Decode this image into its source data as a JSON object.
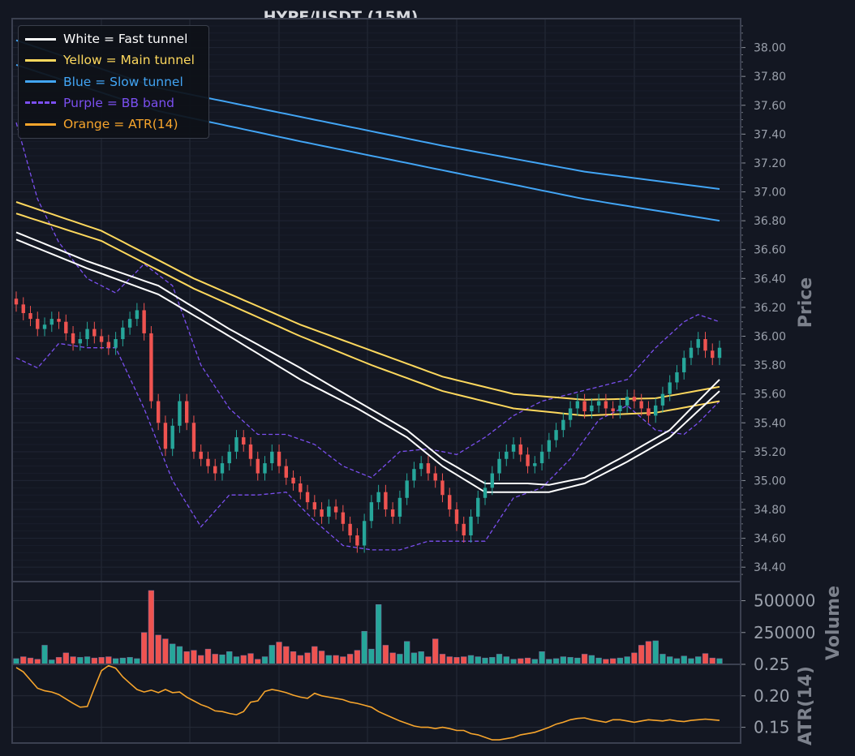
{
  "chart_data": {
    "type": "candlestick",
    "title": "HYPE/USDT (15M)",
    "theme": {
      "background": "#131722",
      "grid": "#262b38",
      "frame": "#3b4050",
      "tick_text": "#9aa0ab",
      "label_text": "#7c818c",
      "up_color": "#26a69a",
      "down_color": "#ef5350"
    },
    "price_panel": {
      "ylabel": "Price",
      "ylim": [
        34.3,
        38.2
      ],
      "yticks": [
        "34.40",
        "34.60",
        "34.80",
        "35.00",
        "35.20",
        "35.40",
        "35.60",
        "35.80",
        "36.00",
        "36.20",
        "36.40",
        "36.60",
        "36.80",
        "37.00",
        "37.20",
        "37.40",
        "37.60",
        "37.80",
        "38.00"
      ],
      "candles_close": [
        36.22,
        36.16,
        36.12,
        36.05,
        36.08,
        36.12,
        36.1,
        36.02,
        35.95,
        35.98,
        36.05,
        36.0,
        35.96,
        35.92,
        35.98,
        36.06,
        36.12,
        36.18,
        36.02,
        35.55,
        35.4,
        35.22,
        35.38,
        35.55,
        35.4,
        35.2,
        35.15,
        35.1,
        35.05,
        35.12,
        35.2,
        35.3,
        35.25,
        35.15,
        35.05,
        35.12,
        35.2,
        35.1,
        35.02,
        34.98,
        34.92,
        34.85,
        34.8,
        34.75,
        34.82,
        34.78,
        34.7,
        34.62,
        34.55,
        34.72,
        34.85,
        34.92,
        34.8,
        34.75,
        34.88,
        35.0,
        35.08,
        35.12,
        35.05,
        35.0,
        34.9,
        34.8,
        34.7,
        34.62,
        34.75,
        34.88,
        34.95,
        35.05,
        35.15,
        35.2,
        35.25,
        35.18,
        35.1,
        35.12,
        35.2,
        35.28,
        35.35,
        35.42,
        35.5,
        35.55,
        35.48,
        35.52,
        35.55,
        35.5,
        35.48,
        35.52,
        35.58,
        35.55,
        35.5,
        35.45,
        35.52,
        35.6,
        35.68,
        35.75,
        35.85,
        35.92,
        35.98,
        35.9,
        35.85,
        35.92
      ],
      "series": [
        {
          "name": "White = Fast tunnel",
          "color": "#ffffff",
          "style": "solid",
          "x": [
            0,
            10,
            20,
            30,
            40,
            48,
            55,
            60,
            66,
            72,
            75,
            80,
            86,
            92,
            99
          ],
          "upper": [
            36.72,
            36.52,
            36.35,
            36.05,
            35.78,
            35.55,
            35.35,
            35.15,
            34.98,
            34.98,
            34.97,
            35.02,
            35.18,
            35.35,
            35.7
          ],
          "lower": [
            36.67,
            36.47,
            36.29,
            36.0,
            35.7,
            35.5,
            35.3,
            35.1,
            34.92,
            34.92,
            34.92,
            34.98,
            35.13,
            35.3,
            35.62
          ]
        },
        {
          "name": "Yellow = Main tunnel",
          "color": "#fdd85d",
          "style": "solid",
          "x": [
            0,
            12,
            25,
            40,
            50,
            60,
            70,
            80,
            90,
            99
          ],
          "upper": [
            36.93,
            36.73,
            36.4,
            36.08,
            35.9,
            35.72,
            35.6,
            35.56,
            35.57,
            35.65
          ],
          "lower": [
            36.85,
            36.66,
            36.33,
            36.0,
            35.8,
            35.62,
            35.5,
            35.45,
            35.47,
            35.55
          ]
        },
        {
          "name": "Blue = Slow tunnel",
          "color": "#42a5f5",
          "style": "solid",
          "x": [
            0,
            20,
            40,
            60,
            80,
            99
          ],
          "upper": [
            38.05,
            37.72,
            37.52,
            37.32,
            37.14,
            37.02
          ],
          "lower": [
            37.88,
            37.56,
            37.35,
            37.15,
            36.95,
            36.8
          ]
        },
        {
          "name": "Purple = BB band",
          "color": "#7b4ff0",
          "style": "dashed",
          "x": [
            0,
            3,
            6,
            10,
            14,
            18,
            22,
            26,
            30,
            34,
            38,
            42,
            46,
            50,
            54,
            58,
            62,
            66,
            70,
            74,
            78,
            82,
            86,
            90,
            94,
            96,
            99
          ],
          "upper": [
            37.48,
            36.95,
            36.65,
            36.4,
            36.3,
            36.5,
            36.35,
            35.8,
            35.5,
            35.32,
            35.32,
            35.25,
            35.1,
            35.02,
            35.2,
            35.22,
            35.18,
            35.3,
            35.45,
            35.55,
            35.6,
            35.65,
            35.7,
            35.92,
            36.1,
            36.15,
            36.1
          ],
          "lower": [
            35.85,
            35.78,
            35.95,
            35.92,
            35.92,
            35.5,
            35.0,
            34.68,
            34.9,
            34.9,
            34.92,
            34.72,
            34.55,
            34.52,
            34.52,
            34.58,
            34.58,
            34.58,
            34.88,
            34.95,
            35.15,
            35.42,
            35.52,
            35.35,
            35.32,
            35.4,
            35.55
          ]
        }
      ]
    },
    "volume_panel": {
      "ylabel": "Volume",
      "yticks": [
        250000,
        500000
      ],
      "ytick_labels": [
        "250000",
        "500000"
      ],
      "ylim": [
        0,
        650000
      ],
      "values": [
        45000,
        60000,
        50000,
        40000,
        150000,
        35000,
        55000,
        90000,
        60000,
        55000,
        60000,
        50000,
        55000,
        60000,
        45000,
        50000,
        55000,
        45000,
        250000,
        580000,
        230000,
        200000,
        160000,
        140000,
        100000,
        110000,
        70000,
        120000,
        80000,
        75000,
        100000,
        60000,
        70000,
        85000,
        40000,
        60000,
        150000,
        175000,
        140000,
        100000,
        70000,
        90000,
        140000,
        105000,
        70000,
        70000,
        60000,
        80000,
        110000,
        260000,
        120000,
        470000,
        150000,
        90000,
        80000,
        180000,
        90000,
        100000,
        60000,
        200000,
        80000,
        60000,
        55000,
        60000,
        70000,
        60000,
        50000,
        55000,
        80000,
        60000,
        40000,
        45000,
        50000,
        40000,
        100000,
        40000,
        45000,
        60000,
        55000,
        50000,
        80000,
        70000,
        50000,
        40000,
        45000,
        50000,
        60000,
        90000,
        150000,
        180000,
        185000,
        80000,
        60000,
        45000,
        65000,
        45000,
        60000,
        85000,
        50000,
        45000
      ]
    },
    "atr_panel": {
      "ylabel": "ATR(14)",
      "ylim": [
        0.125,
        0.25
      ],
      "yticks": [
        0.15,
        0.2,
        0.25
      ],
      "ytick_labels": [
        "0.15",
        "0.20",
        "0.25"
      ],
      "values": [
        0.245,
        0.238,
        0.225,
        0.212,
        0.208,
        0.206,
        0.202,
        0.195,
        0.188,
        0.182,
        0.183,
        0.212,
        0.24,
        0.248,
        0.244,
        0.23,
        0.22,
        0.21,
        0.206,
        0.209,
        0.205,
        0.21,
        0.205,
        0.206,
        0.198,
        0.192,
        0.186,
        0.182,
        0.176,
        0.175,
        0.172,
        0.17,
        0.175,
        0.19,
        0.192,
        0.207,
        0.21,
        0.208,
        0.205,
        0.201,
        0.198,
        0.196,
        0.204,
        0.2,
        0.198,
        0.196,
        0.194,
        0.19,
        0.188,
        0.185,
        0.182,
        0.175,
        0.17,
        0.165,
        0.16,
        0.156,
        0.152,
        0.15,
        0.15,
        0.148,
        0.15,
        0.148,
        0.145,
        0.145,
        0.14,
        0.138,
        0.134,
        0.13,
        0.13,
        0.132,
        0.134,
        0.138,
        0.14,
        0.142,
        0.146,
        0.15,
        0.155,
        0.158,
        0.162,
        0.164,
        0.165,
        0.162,
        0.16,
        0.158,
        0.162,
        0.162,
        0.16,
        0.158,
        0.16,
        0.162,
        0.161,
        0.16,
        0.162,
        0.16,
        0.159,
        0.161,
        0.162,
        0.163,
        0.162,
        0.161
      ],
      "color": "#f7a52c"
    },
    "legend": {
      "placement": "top-left",
      "entries": [
        {
          "label": "White = Fast tunnel",
          "color": "#ffffff",
          "text_color": "#ffffff",
          "style": "solid"
        },
        {
          "label": "Yellow = Main tunnel",
          "color": "#fdd85d",
          "text_color": "#fdd85d",
          "style": "solid"
        },
        {
          "label": "Blue = Slow tunnel",
          "color": "#42a5f5",
          "text_color": "#42a5f5",
          "style": "solid"
        },
        {
          "label": "Purple = BB band",
          "color": "#7b4ff0",
          "text_color": "#7b4ff0",
          "style": "dashed"
        },
        {
          "label": "Orange = ATR(14)",
          "color": "#f7a52c",
          "text_color": "#f7a52c",
          "style": "solid"
        }
      ]
    }
  }
}
